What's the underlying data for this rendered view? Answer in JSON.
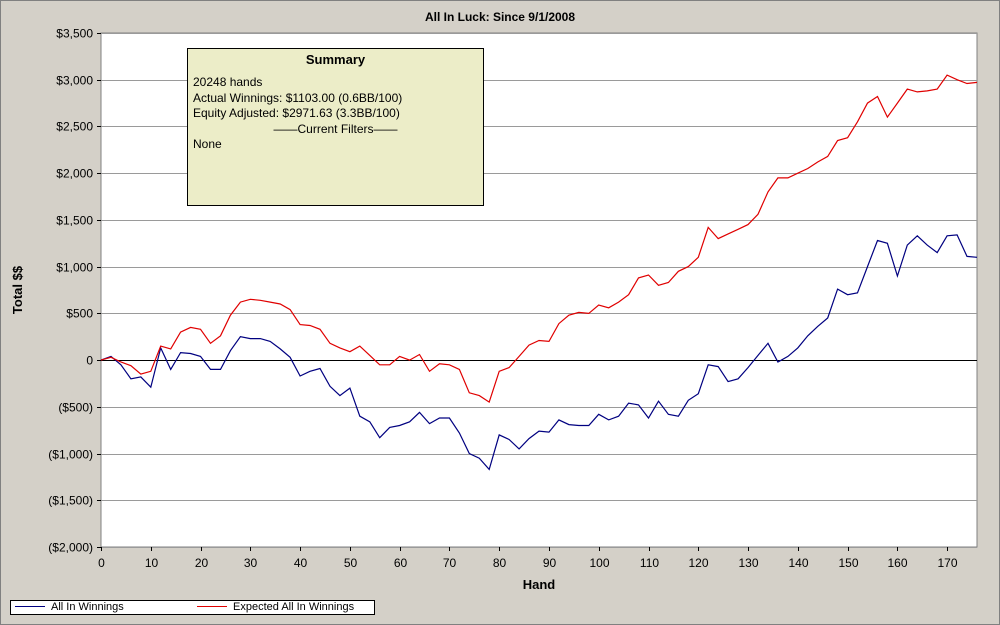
{
  "chart_data": {
    "type": "line",
    "title": "All In Luck: Since 9/1/2008",
    "xlabel": "Hand",
    "ylabel": "Total $$",
    "xlim": [
      0,
      176
    ],
    "ylim": [
      -2000,
      3500
    ],
    "grid": true,
    "x_ticks": [
      0,
      10,
      20,
      30,
      40,
      50,
      60,
      70,
      80,
      90,
      100,
      110,
      120,
      130,
      140,
      150,
      160,
      170
    ],
    "x_tick_labels": [
      "0",
      "10",
      "20",
      "30",
      "40",
      "50",
      "60",
      "70",
      "80",
      "90",
      "100",
      "110",
      "120",
      "130",
      "140",
      "150",
      "160",
      "170"
    ],
    "y_ticks": [
      3500,
      3000,
      2500,
      2000,
      1500,
      1000,
      500,
      0,
      -500,
      -1000,
      -1500,
      -2000
    ],
    "y_tick_labels": [
      "$3,500",
      "$3,000",
      "$2,500",
      "$2,000",
      "$1,500",
      "$1,000",
      "$500",
      "0",
      "($500)",
      "($1,000)",
      "($1,500)",
      "($2,000)"
    ],
    "legend_position": "bottom-left",
    "series": [
      {
        "name": "All In Winnings",
        "color": "#000080",
        "x": [
          0,
          2,
          4,
          6,
          8,
          10,
          12,
          14,
          16,
          18,
          20,
          22,
          24,
          26,
          28,
          30,
          32,
          34,
          36,
          38,
          40,
          42,
          44,
          46,
          48,
          50,
          52,
          54,
          56,
          58,
          60,
          62,
          64,
          66,
          68,
          70,
          72,
          74,
          76,
          78,
          80,
          82,
          84,
          86,
          88,
          90,
          92,
          94,
          96,
          98,
          100,
          102,
          104,
          106,
          108,
          110,
          112,
          114,
          116,
          118,
          120,
          122,
          124,
          126,
          128,
          130,
          132,
          134,
          136,
          138,
          140,
          142,
          144,
          146,
          148,
          150,
          152,
          154,
          156,
          158,
          160,
          162,
          164,
          166,
          168,
          170,
          172,
          174,
          176
        ],
        "values": [
          0,
          40,
          -50,
          -200,
          -180,
          -290,
          130,
          -100,
          80,
          70,
          40,
          -100,
          -100,
          100,
          250,
          230,
          230,
          200,
          120,
          30,
          -170,
          -120,
          -90,
          -280,
          -380,
          -300,
          -600,
          -660,
          -830,
          -720,
          -700,
          -660,
          -560,
          -680,
          -620,
          -620,
          -780,
          -1000,
          -1050,
          -1170,
          -800,
          -850,
          -950,
          -840,
          -760,
          -770,
          -640,
          -690,
          -700,
          -700,
          -580,
          -640,
          -600,
          -460,
          -480,
          -620,
          -440,
          -580,
          -600,
          -430,
          -360,
          -50,
          -70,
          -230,
          -200,
          -80,
          50,
          180,
          -20,
          40,
          130,
          260,
          360,
          450,
          760,
          700,
          720,
          1000,
          1280,
          1250,
          900,
          1230,
          1330,
          1230,
          1150,
          1330,
          1340,
          1110,
          1100
        ]
      },
      {
        "name": "Expected All In Winnings",
        "color": "#e00000",
        "x": [
          0,
          2,
          4,
          6,
          8,
          10,
          12,
          14,
          16,
          18,
          20,
          22,
          24,
          26,
          28,
          30,
          32,
          34,
          36,
          38,
          40,
          42,
          44,
          46,
          48,
          50,
          52,
          54,
          56,
          58,
          60,
          62,
          64,
          66,
          68,
          70,
          72,
          74,
          76,
          78,
          80,
          82,
          84,
          86,
          88,
          90,
          92,
          94,
          96,
          98,
          100,
          102,
          104,
          106,
          108,
          110,
          112,
          114,
          116,
          118,
          120,
          122,
          124,
          126,
          128,
          130,
          132,
          134,
          136,
          138,
          140,
          142,
          144,
          146,
          148,
          150,
          152,
          154,
          156,
          158,
          160,
          162,
          164,
          166,
          168,
          170,
          172,
          174,
          176
        ],
        "values": [
          0,
          30,
          -20,
          -60,
          -150,
          -120,
          150,
          120,
          300,
          350,
          330,
          180,
          260,
          480,
          620,
          650,
          640,
          620,
          600,
          540,
          380,
          370,
          330,
          180,
          130,
          90,
          150,
          50,
          -50,
          -50,
          40,
          0,
          60,
          -120,
          -40,
          -50,
          -100,
          -350,
          -380,
          -450,
          -120,
          -80,
          40,
          160,
          210,
          200,
          390,
          480,
          510,
          500,
          590,
          560,
          620,
          700,
          880,
          910,
          800,
          830,
          950,
          1000,
          1100,
          1420,
          1300,
          1350,
          1400,
          1450,
          1560,
          1800,
          1950,
          1950,
          2000,
          2050,
          2120,
          2180,
          2350,
          2380,
          2550,
          2750,
          2820,
          2600,
          2750,
          2900,
          2870,
          2880,
          2900,
          3050,
          3000,
          2960,
          2971.63
        ]
      }
    ]
  },
  "summary": {
    "title": "Summary",
    "hands": "20248 hands",
    "actual": "Actual Winnings: $1103.00 (0.6BB/100)",
    "equity": "Equity Adjusted: $2971.63 (3.3BB/100)",
    "filters_heading": "——Current Filters——",
    "filters_value": "None"
  },
  "legend": {
    "items": [
      {
        "label": "All In Winnings",
        "color": "#000080"
      },
      {
        "label": "Expected All In Winnings",
        "color": "#e00000"
      }
    ]
  }
}
